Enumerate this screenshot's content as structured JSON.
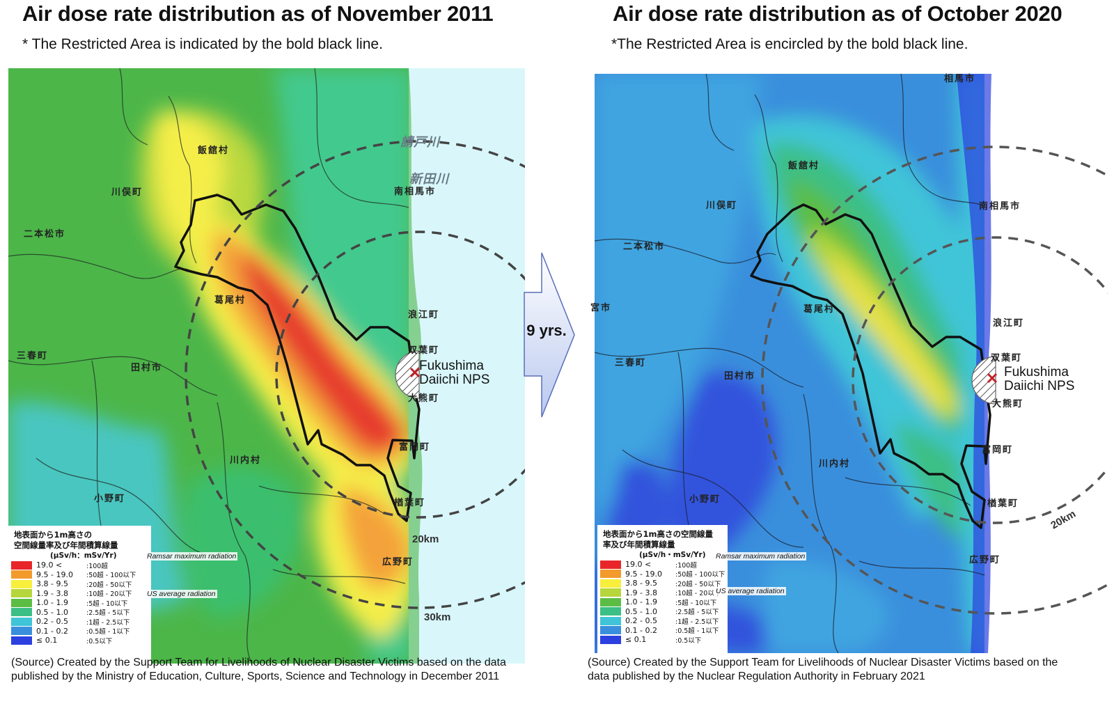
{
  "left": {
    "title": "Air dose rate distribution as of November 2011",
    "subtitle": "* The Restricted Area is indicated by the bold black line.",
    "plant": "Fukushima\nDaiichi NPS",
    "km_20": "20km",
    "km_30": "30km",
    "places": {
      "iitate": "飯舘村",
      "kawamata": "川俣町",
      "nihonmatsu": "二本松市",
      "katsurao": "葛尾村",
      "miharu": "三春町",
      "tamura": "田村市",
      "kawauchi": "川内村",
      "ono": "小野町",
      "minamisoma": "南相馬市",
      "namie": "浪江町",
      "futaba": "双葉町",
      "okuma": "大熊町",
      "tomioka": "富岡町",
      "naraha": "楢葉町",
      "hirono": "広野町",
      "ukedo": "請戸川",
      "niida": "新田川"
    },
    "legend": {
      "heading": "地表面から1m高さの\n空間線量率及び年間積算線量",
      "unit": "(μSv/h：mSv/Yr)",
      "rows": [
        {
          "range": "19.0 <",
          "annual": ":100超",
          "color": "#e8262a"
        },
        {
          "range": "9.5 - 19.0",
          "annual": ":50超 - 100以下",
          "color": "#f39a2d"
        },
        {
          "range": "3.8 - 9.5",
          "annual": ":20超 - 50以下",
          "color": "#f7ef3c"
        },
        {
          "range": "1.9 - 3.8",
          "annual": ":10超 - 20以下",
          "color": "#b6d63b"
        },
        {
          "range": "1.0 - 1.9",
          "annual": ":5超 - 10以下",
          "color": "#5cbd45"
        },
        {
          "range": "0.5 - 1.0",
          "annual": ":2.5超 - 5以下",
          "color": "#3cbf86"
        },
        {
          "range": "0.2 - 0.5",
          "annual": ":1超 - 2.5以下",
          "color": "#3fc4d8"
        },
        {
          "range": "0.1 - 0.2",
          "annual": ":0.5超 - 1以下",
          "color": "#3a8fdc"
        },
        {
          "range": "≤ 0.1",
          "annual": ":0.5以下",
          "color": "#2c40e0"
        }
      ]
    },
    "note_ramsar": "Ramsar maximum radiation",
    "note_us": "US average radiation",
    "source": "(Source) Created by the Support Team for Livelihoods of Nuclear Disaster Victims based on the data published by the Ministry of Education, Culture, Sports, Science and Technology in December 2011"
  },
  "arrow_label": "9 yrs.",
  "right": {
    "title": "Air dose rate distribution as of October 2020",
    "subtitle": "*The Restricted Area is encircled by the bold black line.",
    "plant": "Fukushima\nDaiichi NPS",
    "km_20": "20km",
    "places": {
      "soma": "相馬市",
      "iitate": "飯舘村",
      "kawamata": "川俣町",
      "nihonmatsu": "二本松市",
      "motomiya": "宮市",
      "katsurao": "葛尾村",
      "miharu": "三春町",
      "tamura": "田村市",
      "kawauchi": "川内村",
      "ono": "小野町",
      "minamisoma": "南相馬市",
      "namie": "浪江町",
      "futaba": "双葉町",
      "okuma": "大熊町",
      "tomioka": "富岡町",
      "naraha": "楢葉町",
      "hirono": "広野町"
    },
    "legend": {
      "heading": "地表面から1m高さの空間線量\n率及び年間積算線量",
      "unit": "(μSv/h・mSv/Yr)",
      "rows": [
        {
          "range": "19.0 <",
          "annual": ":100超",
          "color": "#e8262a"
        },
        {
          "range": "9.5 - 19.0",
          "annual": ":50超 - 100以下",
          "color": "#f39a2d"
        },
        {
          "range": "3.8 - 9.5",
          "annual": ":20超 - 50以下",
          "color": "#f7ef3c"
        },
        {
          "range": "1.9 - 3.8",
          "annual": ":10超 - 20以下",
          "color": "#b6d63b"
        },
        {
          "range": "1.0 - 1.9",
          "annual": ":5超 - 10以下",
          "color": "#5cbd45"
        },
        {
          "range": "0.5 - 1.0",
          "annual": ":2.5超 - 5以下",
          "color": "#3cbf86"
        },
        {
          "range": "0.2 - 0.5",
          "annual": ":1超 - 2.5以下",
          "color": "#3fc4d8"
        },
        {
          "range": "0.1 - 0.2",
          "annual": ":0.5超 - 1以下",
          "color": "#3a8fdc"
        },
        {
          "range": "≤ 0.1",
          "annual": ":0.5以下",
          "color": "#2c40e0"
        }
      ]
    },
    "note_ramsar": "Ramsar maximum radiation",
    "note_us": "US average radiation",
    "source": "(Source) Created by the Support Team for Livelihoods of Nuclear Disaster Victims based on the data published by the Nuclear Regulation Authority in February 2021"
  }
}
